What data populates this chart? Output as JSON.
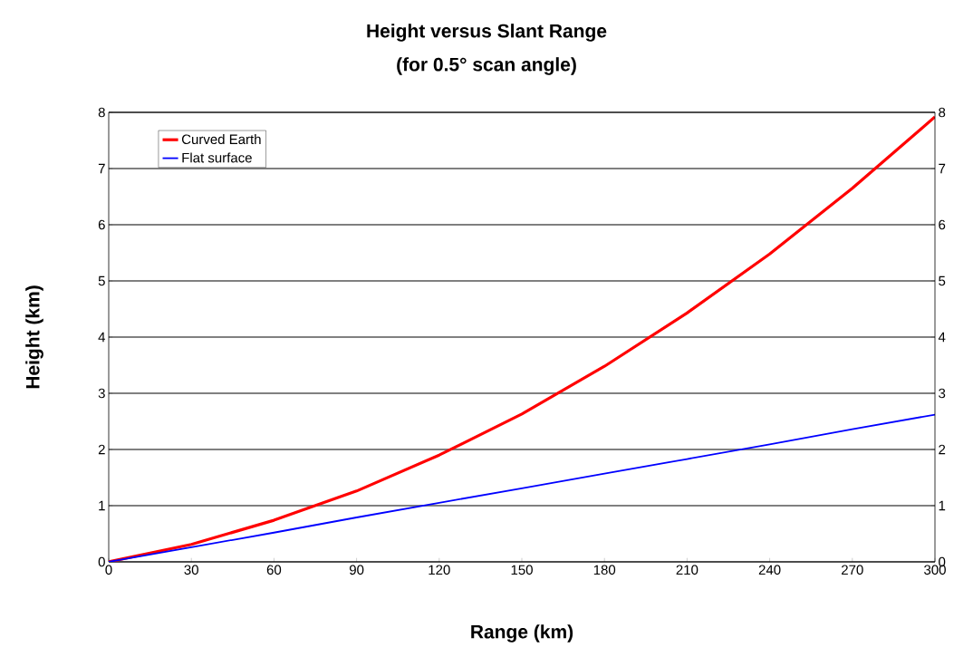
{
  "chart_data": {
    "type": "line",
    "title": "Height versus Slant Range",
    "subtitle": "(for 0.5° scan angle)",
    "xlabel": "Range (km)",
    "ylabel": "Height (km)",
    "x": [
      0,
      30,
      60,
      90,
      120,
      150,
      180,
      210,
      240,
      270,
      300
    ],
    "series": [
      {
        "name": "Curved Earth",
        "color": "#ff0000",
        "values": [
          0,
          0.31,
          0.74,
          1.26,
          1.9,
          2.63,
          3.48,
          4.43,
          5.48,
          6.65,
          7.92
        ]
      },
      {
        "name": "Flat surface",
        "color": "#0000ff",
        "values": [
          0,
          0.26,
          0.52,
          0.79,
          1.05,
          1.31,
          1.57,
          1.83,
          2.09,
          2.36,
          2.62
        ]
      }
    ],
    "xlim": [
      0,
      300
    ],
    "xticks": [
      0,
      30,
      60,
      90,
      120,
      150,
      180,
      210,
      240,
      270,
      300
    ],
    "ylim": [
      0,
      8
    ],
    "yticks": [
      0,
      1,
      2,
      3,
      4,
      5,
      6,
      7,
      8
    ],
    "y2lim": [
      0,
      8
    ],
    "y2ticks": [
      0,
      1,
      2,
      3,
      4,
      5,
      6,
      7,
      8
    ],
    "grid": "y",
    "legend": "top left",
    "marker": "none",
    "line_style": "solid"
  }
}
